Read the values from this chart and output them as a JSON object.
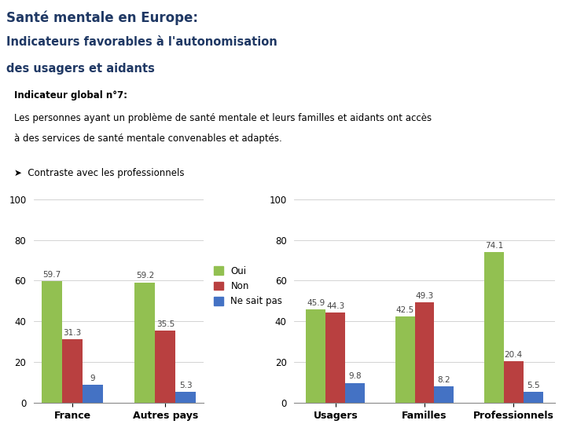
{
  "title_line1": "Santé mentale en Europe:",
  "title_line2": "Indicateurs favorables à l'autonomisation",
  "title_line3": "des usagers et aidants",
  "indicator_bold": "Indicateur global n°7:",
  "indicator_text1": "Les personnes ayant un problème de santé mentale et leurs familles et aidants ont accès",
  "indicator_text2": "à des services de santé mentale convenables et adaptés.",
  "bullet_text": "Contraste avec les professionnels",
  "chart1_categories": [
    "France",
    "Autres pays"
  ],
  "chart1_oui": [
    59.7,
    59.2
  ],
  "chart1_non": [
    31.3,
    35.5
  ],
  "chart1_nsp": [
    9,
    5.3
  ],
  "chart1_nsp_labels": [
    "9",
    "5.3"
  ],
  "chart2_categories": [
    "Usagers",
    "Familles",
    "Professionnels"
  ],
  "chart2_oui": [
    45.9,
    42.5,
    74.1
  ],
  "chart2_non": [
    44.3,
    49.3,
    20.4
  ],
  "chart2_nsp": [
    9.8,
    8.2,
    5.5
  ],
  "color_oui": "#92c051",
  "color_non": "#b94040",
  "color_nsp": "#4472c4",
  "color_header_bg": "#bdd7ee",
  "color_title_text": "#1f3864",
  "ylim": [
    0,
    100
  ],
  "yticks": [
    0,
    20,
    40,
    60,
    80,
    100
  ],
  "bar_width": 0.22,
  "legend_labels": [
    "Oui",
    "Non",
    "Ne sait pas"
  ]
}
